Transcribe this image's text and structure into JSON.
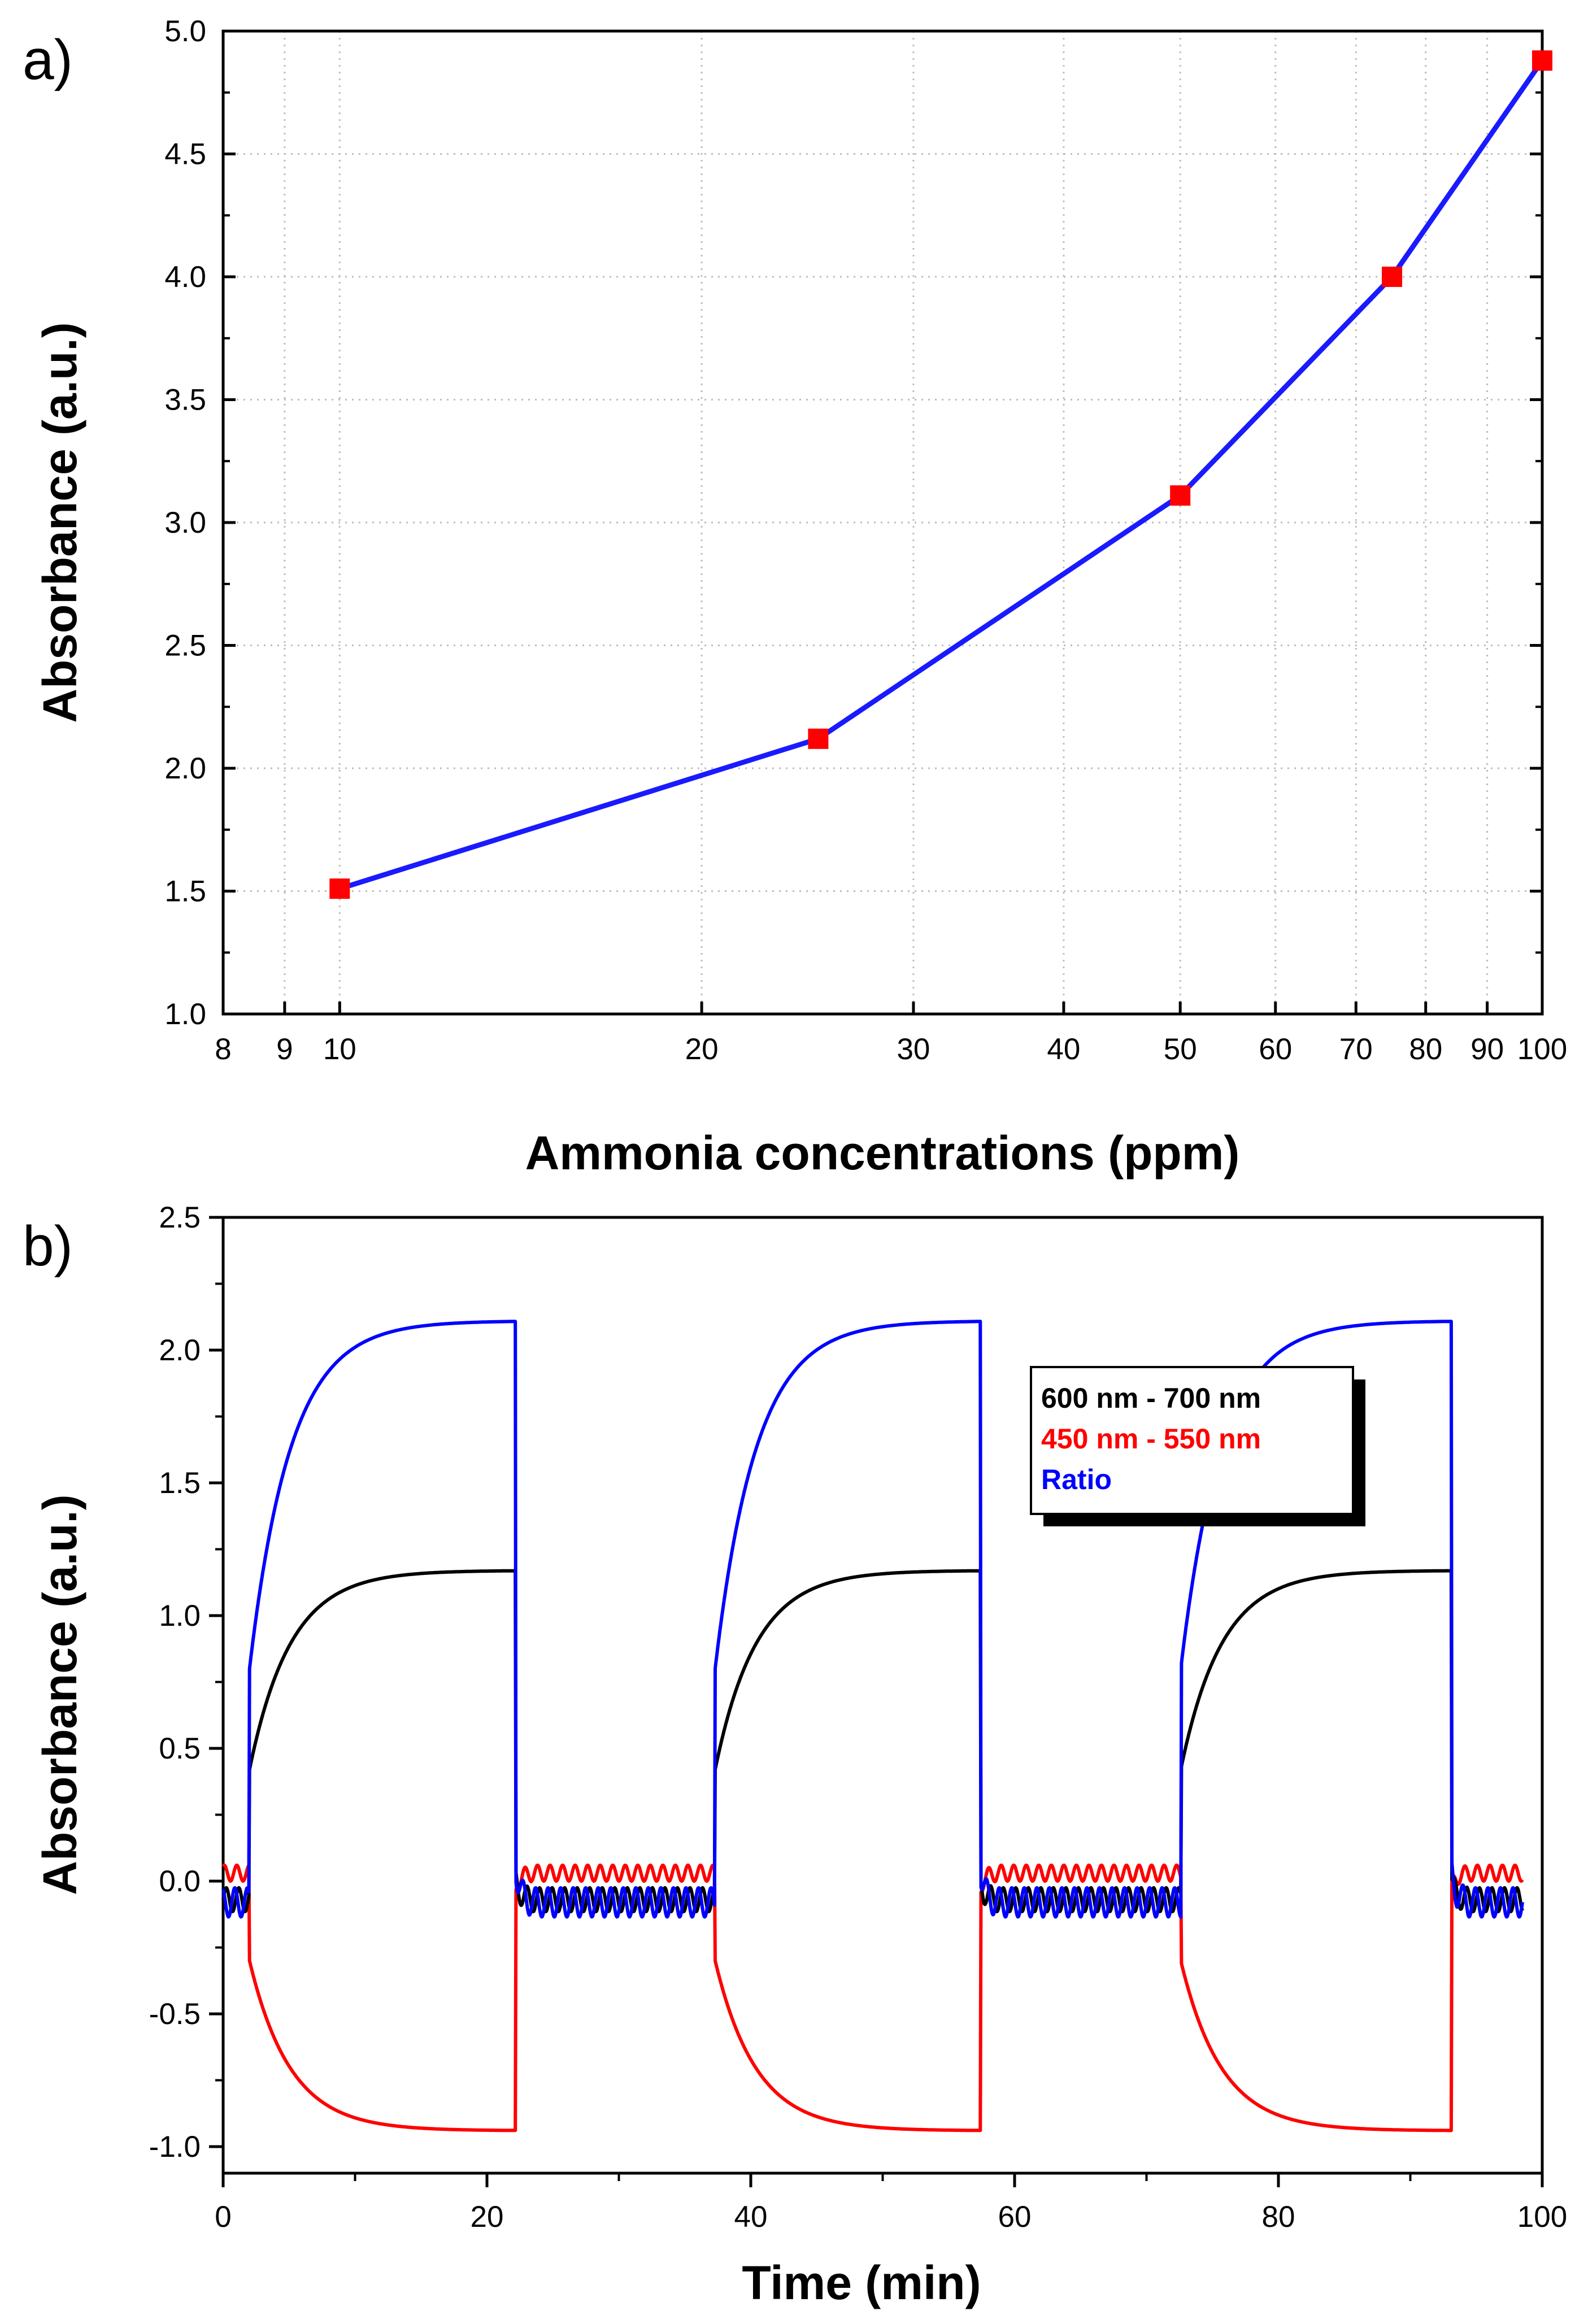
{
  "chart_data": [
    {
      "panel": "a)",
      "type": "line",
      "xlabel": "Ammonia concentrations (ppm)",
      "ylabel": "Absorbance (a.u.)",
      "xscale": "log",
      "xlim": [
        8,
        100
      ],
      "ylim": [
        1.0,
        5.0
      ],
      "xticks": [
        8,
        9,
        10,
        20,
        30,
        40,
        50,
        60,
        70,
        80,
        90,
        100
      ],
      "xtick_labels": [
        "8",
        "9",
        "10",
        "20",
        "30",
        "40",
        "50",
        "60",
        "70",
        "80",
        "90",
        "100"
      ],
      "yticks": [
        1.0,
        1.5,
        2.0,
        2.5,
        3.0,
        3.5,
        4.0,
        4.5,
        5.0
      ],
      "ytick_labels": [
        "1.0",
        "1.5",
        "2.0",
        "2.5",
        "3.0",
        "3.5",
        "4.0",
        "4.5",
        "5.0"
      ],
      "grid": true,
      "line_color": "#1a1aff",
      "marker_color": "#ff0000",
      "marker": "square",
      "series": [
        {
          "x": [
            10,
            25,
            50,
            75,
            100
          ],
          "y": [
            1.51,
            2.12,
            3.11,
            4.0,
            4.88
          ]
        }
      ]
    },
    {
      "panel": "b)",
      "type": "line",
      "xlabel": "Time (min)",
      "ylabel": "Absorbance (a.u.)",
      "xlim": [
        0,
        100
      ],
      "ylim": [
        -1.1,
        2.5
      ],
      "xticks": [
        0,
        20,
        40,
        60,
        80,
        100
      ],
      "xtick_labels": [
        "0",
        "20",
        "40",
        "60",
        "80",
        "100"
      ],
      "yticks": [
        -1.0,
        -0.5,
        0.0,
        0.5,
        1.0,
        1.5,
        2.0,
        2.5
      ],
      "ytick_labels": [
        "-1.0",
        "-0.5",
        "0.0",
        "0.5",
        "1.0",
        "1.5",
        "2.0",
        "2.5"
      ],
      "grid": false,
      "legend_position": "top-right",
      "exposure_windows_min": [
        [
          2.0,
          22.2
        ],
        [
          37.3,
          57.4
        ],
        [
          72.6,
          93.1
        ]
      ],
      "data_end_min": 98.5,
      "series": [
        {
          "name": "600 nm - 700 nm",
          "color": "#000000",
          "baseline": -0.07,
          "on_start": 0.42,
          "plateau": 1.17
        },
        {
          "name": "450 nm - 550 nm",
          "color": "#ff0000",
          "baseline": 0.03,
          "on_start": -0.3,
          "plateau": -0.94
        },
        {
          "name": "Ratio",
          "color": "#0000ff",
          "baseline": -0.08,
          "on_start": 0.8,
          "plateau": 2.11
        }
      ]
    }
  ]
}
